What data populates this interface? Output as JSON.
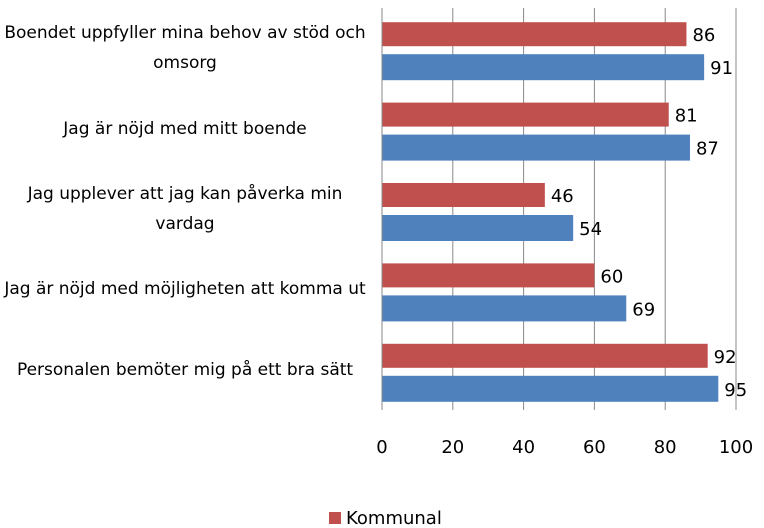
{
  "chart_data": {
    "type": "barh",
    "categories": [
      "Boendet uppfyller mina behov av stöd och omsorg",
      "Jag är nöjd med mitt boende",
      "Jag upplever att jag kan påverka min vardag",
      "Jag är nöjd med möjligheten att komma ut",
      "Personalen bemöter mig på ett bra sätt"
    ],
    "series": [
      {
        "name": "Kommunal",
        "color": "#c0504d",
        "values": [
          86,
          81,
          46,
          60,
          92
        ]
      },
      {
        "color": "#4f81bd",
        "values": [
          91,
          87,
          54,
          69,
          95
        ]
      }
    ],
    "xlim": [
      0,
      100
    ],
    "xticks": [
      0,
      20,
      40,
      60,
      80,
      100
    ],
    "grid": true
  }
}
